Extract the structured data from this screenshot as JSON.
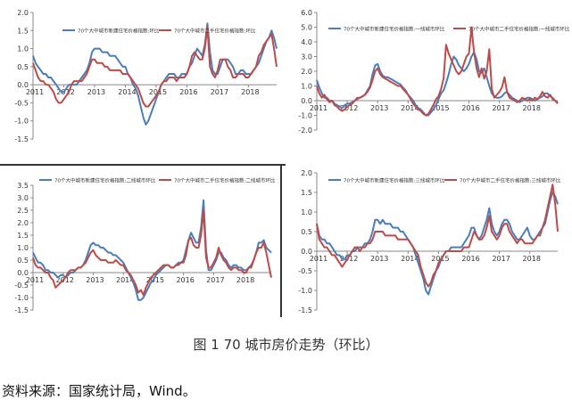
{
  "chart_data": [
    {
      "type": "line",
      "title": "",
      "legend": [
        "70个大中城市新建住宅价格指数:环比",
        "70个大中城市二手住宅价格指数:环比"
      ],
      "legend_placement": "top",
      "x_labels": [
        "2011",
        "2012",
        "2013",
        "2014",
        "2015",
        "2016",
        "2017",
        "2018"
      ],
      "y_ticks": [
        "-1.5",
        "-1.0",
        "-0.5",
        "0.0",
        "0.5",
        "1.0",
        "1.5",
        "2.0"
      ],
      "ylim": [
        -1.5,
        2.0
      ],
      "n_months": 96,
      "colors": [
        "#4a7ebb",
        "#be4b48"
      ],
      "series": [
        {
          "name": "70个大中城市新建住宅价格指数:环比",
          "values": [
            0.8,
            0.6,
            0.5,
            0.4,
            0.3,
            0.3,
            0.2,
            0.2,
            0.1,
            0.0,
            -0.1,
            -0.2,
            -0.2,
            -0.1,
            0.0,
            0.0,
            0.0,
            0.0,
            0.1,
            0.2,
            0.3,
            0.4,
            0.6,
            0.9,
            1.0,
            1.0,
            1.0,
            0.9,
            0.9,
            0.9,
            0.8,
            0.8,
            0.8,
            0.7,
            0.6,
            0.5,
            0.5,
            0.3,
            0.2,
            0.0,
            -0.1,
            -0.3,
            -0.6,
            -0.9,
            -1.1,
            -1.0,
            -0.8,
            -0.6,
            -0.4,
            -0.2,
            0.0,
            0.1,
            0.2,
            0.3,
            0.3,
            0.3,
            0.2,
            0.2,
            0.3,
            0.3,
            0.3,
            0.5,
            0.6,
            0.8,
            1.0,
            0.9,
            0.8,
            1.1,
            1.7,
            0.9,
            0.4,
            0.3,
            0.3,
            0.5,
            0.7,
            0.7,
            0.7,
            0.6,
            0.5,
            0.3,
            0.3,
            0.4,
            0.4,
            0.3,
            0.3,
            0.3,
            0.4,
            0.5,
            0.6,
            0.8,
            1.0,
            1.2,
            1.3,
            1.5,
            1.3,
            1.0
          ]
        },
        {
          "name": "70个大中城市二手住宅价格指数:环比",
          "values": [
            0.6,
            0.4,
            0.2,
            0.1,
            0.1,
            0.0,
            0.0,
            -0.1,
            -0.2,
            -0.4,
            -0.5,
            -0.5,
            -0.4,
            -0.3,
            -0.2,
            0.0,
            0.1,
            0.1,
            0.1,
            0.1,
            0.2,
            0.3,
            0.5,
            0.7,
            0.7,
            0.6,
            0.6,
            0.6,
            0.5,
            0.5,
            0.4,
            0.4,
            0.4,
            0.4,
            0.4,
            0.3,
            0.3,
            0.3,
            0.2,
            0.1,
            0.0,
            -0.1,
            -0.3,
            -0.5,
            -0.6,
            -0.6,
            -0.5,
            -0.4,
            -0.3,
            -0.2,
            0.0,
            0.1,
            0.1,
            0.2,
            0.2,
            0.2,
            0.1,
            0.2,
            0.2,
            0.2,
            0.3,
            0.5,
            0.8,
            0.9,
            0.8,
            0.7,
            0.7,
            1.0,
            1.6,
            0.5,
            0.3,
            0.2,
            0.4,
            0.7,
            0.7,
            0.7,
            0.5,
            0.4,
            0.2,
            0.2,
            0.3,
            0.3,
            0.3,
            0.2,
            0.2,
            0.3,
            0.4,
            0.5,
            0.8,
            0.9,
            1.1,
            1.2,
            1.3,
            1.4,
            1.0,
            0.5
          ]
        }
      ]
    },
    {
      "type": "line",
      "title": "",
      "legend": [
        "70个大中城市新建住宅价格指数:一线城市环比",
        "70个大中城市二手住宅价格指数:一线城市环比"
      ],
      "legend_placement": "top",
      "x_labels": [
        "2011",
        "2012",
        "2013",
        "2014",
        "2015",
        "2016",
        "2017",
        "2018"
      ],
      "y_ticks": [
        "-2.0",
        "-1.0",
        "0.0",
        "1.0",
        "2.0",
        "3.0",
        "4.0",
        "5.0",
        "6.0"
      ],
      "ylim": [
        -2.0,
        6.0
      ],
      "n_months": 96,
      "colors": [
        "#4a7ebb",
        "#be4b48"
      ],
      "series": [
        {
          "name": "70个大中城市新建住宅价格指数:一线城市环比",
          "values": [
            1.4,
            0.9,
            0.5,
            0.2,
            0.2,
            0.0,
            0.0,
            -0.2,
            -0.3,
            -0.4,
            -0.5,
            -0.3,
            -0.2,
            -0.2,
            -0.1,
            0.0,
            0.1,
            0.2,
            0.3,
            0.4,
            0.7,
            1.0,
            1.8,
            2.4,
            2.5,
            2.0,
            1.7,
            1.6,
            1.6,
            1.5,
            1.4,
            1.3,
            1.2,
            1.1,
            0.9,
            0.7,
            0.4,
            0.2,
            0.0,
            -0.3,
            -0.5,
            -0.6,
            -0.8,
            -1.0,
            -1.0,
            -0.8,
            -0.6,
            -0.3,
            0.1,
            0.5,
            0.7,
            1.2,
            1.8,
            2.5,
            3.0,
            2.8,
            2.4,
            2.2,
            2.0,
            2.2,
            2.5,
            3.0,
            3.3,
            2.8,
            2.0,
            1.9,
            2.2,
            1.6,
            1.0,
            0.5,
            0.3,
            0.2,
            0.2,
            0.3,
            0.5,
            0.6,
            0.4,
            0.2,
            0.1,
            0.0,
            -0.1,
            0.0,
            0.1,
            0.2,
            0.2,
            0.1,
            0.0,
            0.1,
            0.2,
            0.3,
            0.5,
            0.5,
            0.3,
            0.2,
            0.0,
            -0.1
          ]
        },
        {
          "name": "70个大中城市二手住宅价格指数:一线城市环比",
          "values": [
            1.0,
            0.5,
            0.2,
            0.4,
            0.1,
            -0.1,
            0.0,
            -0.3,
            -0.4,
            -0.6,
            -0.7,
            -0.6,
            -0.4,
            -0.3,
            -0.2,
            0.0,
            0.2,
            0.2,
            0.3,
            0.4,
            0.6,
            0.9,
            1.4,
            2.0,
            2.2,
            1.8,
            1.6,
            1.5,
            1.4,
            1.3,
            1.2,
            1.1,
            1.0,
            1.0,
            0.8,
            0.6,
            0.4,
            0.1,
            -0.2,
            -0.4,
            -0.6,
            -0.7,
            -0.9,
            -1.0,
            -0.9,
            -0.6,
            -0.3,
            0.1,
            0.3,
            0.8,
            1.5,
            3.8,
            3.2,
            2.8,
            2.4,
            2.0,
            1.8,
            2.0,
            2.5,
            3.0,
            3.2,
            5.0,
            3.3,
            2.2,
            1.6,
            2.2,
            1.5,
            2.0,
            3.5,
            0.8,
            0.2,
            0.4,
            0.6,
            0.9,
            1.6,
            0.6,
            0.2,
            0.1,
            0.0,
            -0.1,
            0.0,
            0.2,
            0.1,
            0.0,
            0.1,
            0.0,
            0.2,
            0.1,
            0.3,
            0.6,
            0.3,
            0.2,
            0.4,
            0.1,
            0.0,
            -0.2
          ]
        }
      ]
    },
    {
      "type": "line",
      "title": "",
      "legend": [
        "70个大中城市新建住宅价格指数:二线城市环比",
        "70个大中城市二手住宅价格指数:二线城市环比"
      ],
      "legend_placement": "top",
      "x_labels": [
        "2011",
        "2012",
        "2013",
        "2014",
        "2015",
        "2016",
        "2017",
        "2018"
      ],
      "y_ticks": [
        "-1.5",
        "-1.0",
        "-0.5",
        "0.0",
        "0.5",
        "1.0",
        "1.5",
        "2.0",
        "2.5",
        "3.0",
        "3.5"
      ],
      "ylim": [
        -1.5,
        3.5
      ],
      "n_months": 96,
      "colors": [
        "#4a7ebb",
        "#be4b48"
      ],
      "series": [
        {
          "name": "70个大中城市新建住宅价格指数:二线城市环比",
          "values": [
            0.8,
            0.6,
            0.4,
            0.4,
            0.3,
            0.1,
            0.1,
            0.0,
            0.0,
            -0.1,
            -0.2,
            -0.1,
            -0.1,
            -0.2,
            -0.1,
            0.0,
            0.0,
            0.1,
            0.2,
            0.2,
            0.3,
            0.5,
            0.8,
            1.1,
            1.2,
            1.1,
            1.1,
            1.0,
            1.0,
            0.9,
            0.8,
            0.8,
            0.7,
            0.7,
            0.6,
            0.5,
            0.4,
            0.2,
            0.0,
            -0.2,
            -0.4,
            -0.7,
            -1.1,
            -1.1,
            -1.0,
            -0.8,
            -0.6,
            -0.4,
            -0.3,
            -0.1,
            0.0,
            0.1,
            0.2,
            0.3,
            0.3,
            0.2,
            0.2,
            0.3,
            0.4,
            0.4,
            0.5,
            0.9,
            1.3,
            1.6,
            1.4,
            1.2,
            1.2,
            1.8,
            2.9,
            0.9,
            0.1,
            0.1,
            0.3,
            0.5,
            0.8,
            0.8,
            0.6,
            0.5,
            0.3,
            0.2,
            0.3,
            0.3,
            0.2,
            0.2,
            0.1,
            0.1,
            0.2,
            0.3,
            0.5,
            0.8,
            1.2,
            1.2,
            1.3,
            1.0,
            0.9,
            0.8
          ]
        },
        {
          "name": "70个大中城市二手住宅价格指数:二线城市环比",
          "values": [
            0.6,
            0.3,
            0.2,
            0.2,
            0.1,
            0.0,
            0.0,
            -0.2,
            -0.3,
            -0.6,
            -0.5,
            -0.4,
            -0.3,
            -0.2,
            0.0,
            0.1,
            0.1,
            0.1,
            0.2,
            0.2,
            0.3,
            0.4,
            0.6,
            0.8,
            0.9,
            0.7,
            0.6,
            0.5,
            0.5,
            0.5,
            0.4,
            0.4,
            0.4,
            0.5,
            0.4,
            0.3,
            0.3,
            0.1,
            0.0,
            -0.1,
            -0.3,
            -0.5,
            -0.8,
            -0.7,
            -0.9,
            -0.6,
            -0.4,
            -0.2,
            -0.1,
            0.0,
            0.1,
            0.2,
            0.3,
            0.3,
            0.3,
            0.2,
            0.2,
            0.3,
            0.3,
            0.4,
            0.4,
            0.7,
            1.3,
            1.4,
            1.1,
            1.0,
            1.0,
            1.5,
            2.5,
            0.6,
            0.2,
            0.2,
            0.4,
            0.6,
            1.0,
            0.7,
            0.5,
            0.4,
            0.2,
            0.1,
            0.2,
            0.2,
            0.1,
            0.1,
            0.0,
            0.0,
            0.2,
            0.2,
            0.5,
            0.8,
            1.0,
            1.0,
            1.2,
            0.8,
            0.3,
            -0.2
          ]
        }
      ]
    },
    {
      "type": "line",
      "title": "",
      "legend": [
        "70个大中城市新建住宅价格指数:三线城市环比",
        "70个大中城市二手住宅价格指数:三线城市环比"
      ],
      "legend_placement": "top",
      "x_labels": [
        "2011",
        "2012",
        "2013",
        "2014",
        "2015",
        "2016",
        "2017",
        "2018"
      ],
      "y_ticks": [
        "-1.5",
        "-1.0",
        "-0.5",
        "0.0",
        "0.5",
        "1.0",
        "1.5",
        "2.0"
      ],
      "ylim": [
        -1.5,
        2.0
      ],
      "n_months": 96,
      "colors": [
        "#4a7ebb",
        "#be4b48"
      ],
      "series": [
        {
          "name": "70个大中城市新建住宅价格指数:三线城市环比",
          "values": [
            0.7,
            0.4,
            0.3,
            0.3,
            0.2,
            0.2,
            0.1,
            0.0,
            -0.1,
            -0.1,
            -0.2,
            -0.2,
            -0.1,
            -0.1,
            0.0,
            0.0,
            0.1,
            0.1,
            0.1,
            0.2,
            0.2,
            0.3,
            0.5,
            0.8,
            0.8,
            0.7,
            0.8,
            0.7,
            0.7,
            0.7,
            0.6,
            0.6,
            0.6,
            0.5,
            0.5,
            0.4,
            0.3,
            0.2,
            0.1,
            -0.1,
            -0.3,
            -0.5,
            -0.7,
            -1.0,
            -1.1,
            -0.9,
            -0.7,
            -0.5,
            -0.4,
            -0.2,
            -0.1,
            0.0,
            0.0,
            0.1,
            0.1,
            0.1,
            0.1,
            0.1,
            0.2,
            0.3,
            0.4,
            0.6,
            0.6,
            0.4,
            0.3,
            0.4,
            0.6,
            0.8,
            1.1,
            0.7,
            0.5,
            0.4,
            0.5,
            0.7,
            0.8,
            0.8,
            0.7,
            0.5,
            0.4,
            0.3,
            0.3,
            0.4,
            0.5,
            0.6,
            0.4,
            0.3,
            0.3,
            0.4,
            0.5,
            0.6,
            0.7,
            1.0,
            1.3,
            1.5,
            1.4,
            1.2
          ]
        },
        {
          "name": "70个大中城市二手住宅价格指数:三线城市环比",
          "values": [
            0.7,
            0.3,
            0.2,
            0.1,
            0.1,
            0.0,
            -0.1,
            -0.1,
            -0.2,
            -0.3,
            -0.4,
            -0.3,
            -0.2,
            -0.1,
            0.0,
            0.1,
            0.1,
            0.0,
            0.1,
            0.1,
            0.2,
            0.2,
            0.3,
            0.5,
            0.5,
            0.5,
            0.5,
            0.4,
            0.4,
            0.4,
            0.4,
            0.4,
            0.3,
            0.3,
            0.3,
            0.3,
            0.3,
            0.2,
            0.1,
            0.0,
            -0.1,
            -0.4,
            -0.6,
            -0.8,
            -0.9,
            -0.8,
            -0.6,
            -0.5,
            -0.3,
            -0.2,
            -0.1,
            0.0,
            0.0,
            0.0,
            0.0,
            0.0,
            0.0,
            0.0,
            0.1,
            0.1,
            0.1,
            0.3,
            0.5,
            0.4,
            0.3,
            0.3,
            0.4,
            0.6,
            0.9,
            0.5,
            0.4,
            0.3,
            0.4,
            0.6,
            0.7,
            0.7,
            0.5,
            0.4,
            0.3,
            0.2,
            0.3,
            0.3,
            0.2,
            0.2,
            0.2,
            0.2,
            0.3,
            0.4,
            0.4,
            0.6,
            0.8,
            1.1,
            1.4,
            1.7,
            1.2,
            0.5
          ]
        }
      ]
    }
  ],
  "caption": "图 1 70 城市房价走势（环比）",
  "source": "资料来源：国家统计局，Wind。"
}
